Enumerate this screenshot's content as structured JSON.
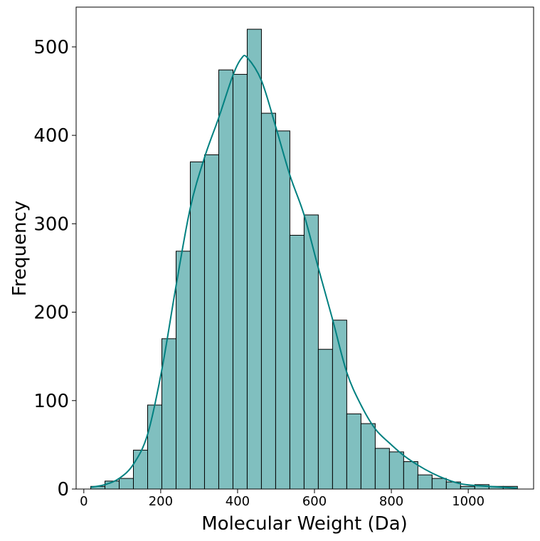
{
  "chart_data": {
    "type": "bar",
    "subtype": "histogram_with_kde",
    "title": "",
    "xlabel": "Molecular Weight (Da)",
    "ylabel": "Frequency",
    "xlim": [
      -20,
      1170
    ],
    "ylim": [
      0,
      545
    ],
    "grid": false,
    "legend": "none",
    "bar_color": "#80bfbf",
    "edge_color": "#000000",
    "kde_color": "#008080",
    "x_ticks": [
      0,
      200,
      400,
      600,
      800,
      1000
    ],
    "x_tick_labels": [
      "0",
      "200",
      "400",
      "600",
      "800",
      "1000"
    ],
    "y_ticks": [
      0,
      100,
      200,
      300,
      400,
      500
    ],
    "y_tick_labels": [
      "0",
      "100",
      "200",
      "300",
      "400",
      "500"
    ],
    "bin_edges": [
      18,
      55,
      92,
      129,
      166,
      203,
      240,
      277,
      314,
      351,
      388,
      425,
      462,
      499,
      536,
      573,
      610,
      647,
      684,
      721,
      758,
      795,
      832,
      869,
      906,
      943,
      980,
      1017,
      1054,
      1091,
      1128
    ],
    "counts": [
      3,
      9,
      12,
      44,
      95,
      170,
      269,
      370,
      378,
      474,
      469,
      520,
      425,
      405,
      287,
      310,
      158,
      191,
      85,
      74,
      46,
      42,
      31,
      16,
      12,
      8,
      3,
      5,
      3,
      3
    ],
    "kde_x": [
      18,
      55,
      92,
      129,
      166,
      203,
      240,
      277,
      314,
      351,
      388,
      410,
      425,
      462,
      499,
      536,
      573,
      610,
      647,
      684,
      721,
      758,
      795,
      832,
      869,
      906,
      943,
      980,
      1017,
      1054,
      1091,
      1128
    ],
    "kde_y": [
      2,
      5,
      12,
      28,
      62,
      135,
      230,
      318,
      375,
      420,
      468,
      487,
      488,
      462,
      410,
      355,
      310,
      250,
      192,
      132,
      95,
      68,
      52,
      38,
      27,
      18,
      11,
      6,
      4,
      3,
      2,
      1
    ]
  }
}
